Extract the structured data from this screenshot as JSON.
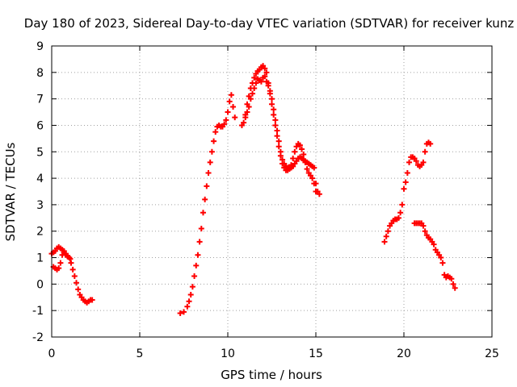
{
  "chart_data": {
    "type": "scatter",
    "title": "Day 180 of 2023, Sidereal Day-to-day VTEC variation (SDTVAR) for receiver kunz",
    "xlabel": "GPS time / hours",
    "ylabel": "SDTVAR / TECUs",
    "xlim": [
      0,
      25
    ],
    "ylim": [
      -2,
      9
    ],
    "xticks": [
      "0",
      "5",
      "10",
      "15",
      "20",
      "25"
    ],
    "yticks": [
      "-2",
      "-1",
      "0",
      "1",
      "2",
      "3",
      "4",
      "5",
      "6",
      "7",
      "8",
      "9"
    ],
    "grid": true,
    "marker": "+",
    "color": "#ff0000",
    "series": [
      {
        "x": [
          0.0,
          0.1,
          0.2,
          0.3,
          0.4,
          0.5,
          0.6,
          0.7,
          0.8,
          0.9,
          1.0,
          1.05,
          1.1,
          1.2,
          1.3,
          1.4,
          1.5,
          1.6,
          1.7,
          1.8,
          1.9,
          2.0,
          2.1,
          2.2,
          2.3
        ],
        "y": [
          1.15,
          1.2,
          1.25,
          1.35,
          1.4,
          1.35,
          1.3,
          1.2,
          1.1,
          1.05,
          1.0,
          0.95,
          0.8,
          0.55,
          0.3,
          0.05,
          -0.2,
          -0.4,
          -0.5,
          -0.6,
          -0.65,
          -0.7,
          -0.65,
          -0.6,
          -0.6
        ]
      },
      {
        "x": [
          0.1,
          0.2,
          0.3,
          0.4,
          0.5,
          0.6,
          0.7,
          0.8,
          0.9
        ],
        "y": [
          0.65,
          0.6,
          0.55,
          0.6,
          0.8,
          1.1,
          1.25,
          1.15,
          1.05
        ]
      },
      {
        "x": [
          7.3,
          7.5,
          7.7,
          7.8,
          7.9,
          8.0,
          8.1,
          8.2,
          8.3,
          8.4,
          8.5,
          8.6,
          8.7,
          8.8,
          8.9,
          9.0,
          9.1,
          9.2,
          9.3,
          9.4,
          9.5,
          9.6,
          9.7,
          9.8,
          9.9,
          10.0,
          10.1,
          10.2,
          10.3,
          10.4
        ],
        "y": [
          -1.1,
          -1.05,
          -0.85,
          -0.65,
          -0.4,
          -0.1,
          0.3,
          0.7,
          1.1,
          1.6,
          2.1,
          2.7,
          3.2,
          3.7,
          4.2,
          4.6,
          5.0,
          5.4,
          5.75,
          5.95,
          6.0,
          5.95,
          5.95,
          6.05,
          6.2,
          6.5,
          6.9,
          7.15,
          6.7,
          6.3
        ]
      },
      {
        "x": [
          10.8,
          10.9,
          11.0,
          11.1,
          11.2,
          11.3,
          11.4,
          11.5,
          11.6,
          11.7,
          11.8,
          11.9,
          12.0,
          12.1,
          12.2,
          12.3,
          12.4,
          12.5,
          12.6,
          12.7,
          12.8,
          12.9,
          13.0,
          13.1,
          13.2,
          13.3,
          13.4,
          13.5,
          13.6,
          13.7,
          13.8,
          13.9,
          14.0,
          14.1,
          14.2,
          14.3,
          14.4,
          14.5,
          14.6,
          14.7,
          14.8,
          14.9,
          15.0,
          15.1,
          15.2
        ],
        "y": [
          6.0,
          6.1,
          6.3,
          6.5,
          6.7,
          7.0,
          7.2,
          7.4,
          7.6,
          7.75,
          7.7,
          7.65,
          7.8,
          7.85,
          7.65,
          7.5,
          7.2,
          6.8,
          6.4,
          6.0,
          5.6,
          5.2,
          4.85,
          4.55,
          4.4,
          4.3,
          4.3,
          4.35,
          4.4,
          4.45,
          4.55,
          4.65,
          4.75,
          4.8,
          4.75,
          4.7,
          4.65,
          4.6,
          4.55,
          4.5,
          4.45,
          4.4,
          3.8,
          3.5,
          3.4
        ]
      },
      {
        "x": [
          11.0,
          11.1,
          11.2,
          11.3,
          11.4,
          11.5,
          11.6,
          11.7,
          11.8,
          11.9,
          12.0,
          12.1,
          12.2,
          12.3,
          12.4,
          12.5,
          12.6,
          12.7,
          12.8,
          12.9,
          13.0,
          13.1,
          13.2,
          13.3,
          13.4,
          13.5,
          13.6,
          13.7,
          13.8,
          13.9,
          14.0,
          14.1,
          14.2,
          14.3,
          14.4,
          14.5,
          14.6,
          14.7,
          14.8,
          14.9,
          15.0
        ],
        "y": [
          6.4,
          6.8,
          7.1,
          7.4,
          7.6,
          7.8,
          7.95,
          8.05,
          8.1,
          8.2,
          8.25,
          8.15,
          8.0,
          7.6,
          7.3,
          7.0,
          6.6,
          6.2,
          5.8,
          5.4,
          5.0,
          4.7,
          4.55,
          4.45,
          4.4,
          4.4,
          4.5,
          4.75,
          5.0,
          5.2,
          5.3,
          5.25,
          5.1,
          4.9,
          4.6,
          4.35,
          4.2,
          4.1,
          4.0,
          3.8,
          3.5
        ]
      },
      {
        "x": [
          18.9,
          19.0,
          19.1,
          19.2,
          19.3,
          19.4,
          19.5,
          19.6,
          19.7,
          19.8,
          19.9,
          20.0,
          20.1,
          20.2,
          20.3,
          20.4,
          20.5,
          20.6,
          20.7,
          20.8,
          20.9,
          21.0,
          21.1,
          21.2,
          21.3,
          21.4,
          21.5
        ],
        "y": [
          1.6,
          1.8,
          2.0,
          2.2,
          2.3,
          2.4,
          2.45,
          2.45,
          2.5,
          2.7,
          3.0,
          3.6,
          3.85,
          4.2,
          4.6,
          4.8,
          4.8,
          4.75,
          4.65,
          4.5,
          4.45,
          4.5,
          4.6,
          5.0,
          5.3,
          5.35,
          5.3
        ]
      },
      {
        "x": [
          20.6,
          20.7,
          20.8,
          20.9,
          21.0,
          21.1,
          21.2,
          21.3,
          21.4,
          21.5,
          21.6,
          21.7,
          21.8,
          21.9,
          22.0,
          22.1,
          22.2,
          22.3,
          22.4,
          22.5,
          22.6,
          22.7,
          22.8,
          22.9
        ],
        "y": [
          2.3,
          2.3,
          2.3,
          2.3,
          2.3,
          2.2,
          2.0,
          1.85,
          1.75,
          1.7,
          1.6,
          1.5,
          1.3,
          1.2,
          1.1,
          1.0,
          0.8,
          0.35,
          0.25,
          0.3,
          0.25,
          0.2,
          0.0,
          -0.15
        ]
      }
    ]
  }
}
